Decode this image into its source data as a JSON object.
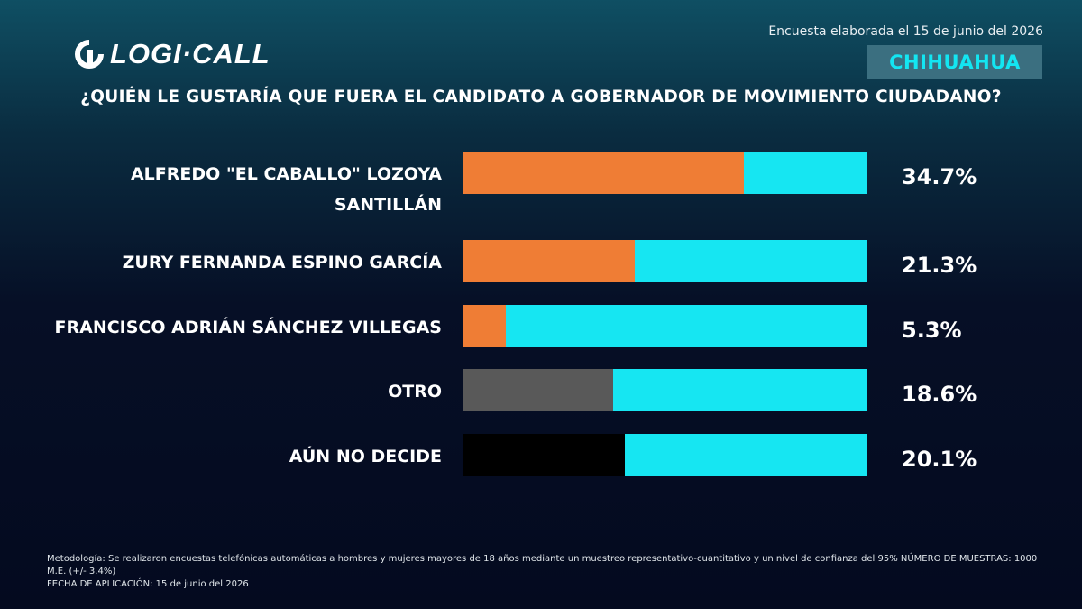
{
  "header": {
    "logo_text": "LOGI·CALL",
    "date_text": "Encuesta elaborada el 15 de junio del 2026",
    "state": "CHIHUAHUA",
    "question": "¿QUIÉN LE GUSTARÍA QUE FUERA EL CANDIDATO A GOBERNADOR DE MOVIMIENTO CIUDADANO?"
  },
  "colors": {
    "track": "#16e6f2",
    "candidate": "#ef7d35",
    "otro": "#595959",
    "undecided": "#000000",
    "accent": "#13e6f2"
  },
  "chart_data": {
    "type": "bar",
    "orientation": "horizontal",
    "title": "¿QUIÉN LE GUSTARÍA QUE FUERA EL CANDIDATO A GOBERNADOR DE MOVIMIENTO CIUDADANO?",
    "categories": [
      "ALFREDO \"EL CABALLO\" LOZOYA SANTILLÁN",
      "ZURY FERNANDA ESPINO GARCÍA",
      "FRANCISCO ADRIÁN SÁNCHEZ VILLEGAS",
      "OTRO",
      "AÚN NO DECIDE"
    ],
    "values": [
      34.7,
      21.3,
      5.3,
      18.6,
      20.1
    ],
    "value_labels": [
      "34.7%",
      "21.3%",
      "5.3%",
      "18.6%",
      "20.1%"
    ],
    "bar_colors": [
      "#ef7d35",
      "#ef7d35",
      "#ef7d35",
      "#595959",
      "#000000"
    ],
    "xlim": [
      0,
      50
    ],
    "grid": false,
    "legend": "none"
  },
  "footer": {
    "methodology": "Metodología: Se realizaron encuestas telefónicas automáticas a hombres y mujeres mayores de 18 años mediante un muestreo representativo-cuantitativo y un nivel de confianza del 95% NÚMERO DE MUESTRAS: 1000 M.E. (+/- 3.4%)",
    "fecha": "FECHA DE APLICACIÓN: 15 de junio del 2026"
  }
}
